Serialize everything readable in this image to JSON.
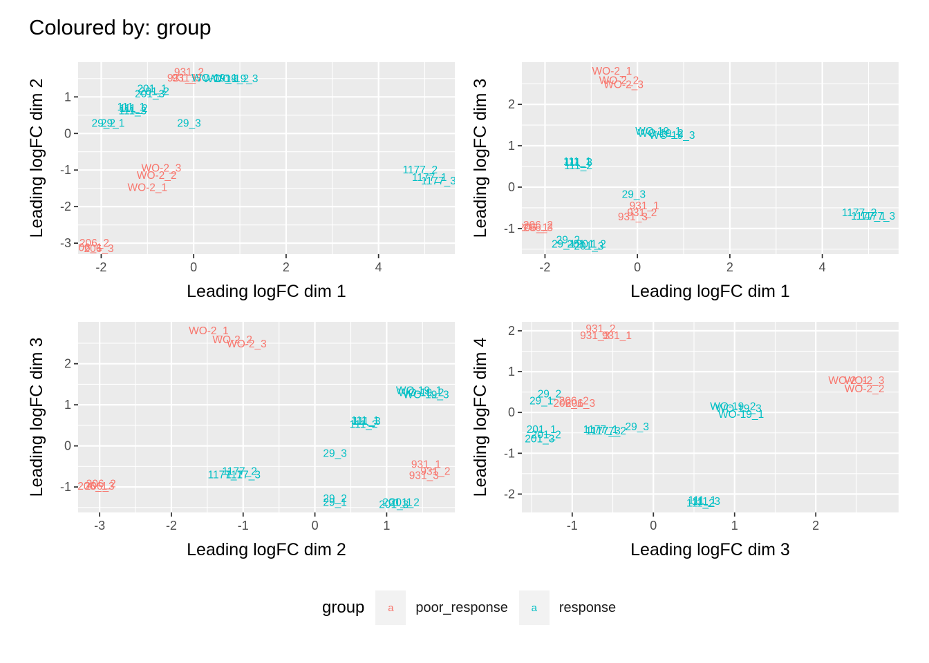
{
  "title": "Coloured by: group",
  "colors": {
    "poor_response": "#F8766D",
    "response": "#00BFC4"
  },
  "legend": {
    "title": "group",
    "key_glyph": "a",
    "items": [
      {
        "key": "poor_response",
        "label": "poor_response"
      },
      {
        "key": "response",
        "label": "response"
      }
    ]
  },
  "chart_data": [
    {
      "type": "scatter",
      "xlabel": "Leading logFC dim 1",
      "ylabel": "Leading logFC dim 2",
      "xlim": [
        -2.5,
        5.65
      ],
      "ylim": [
        -3.3,
        1.95
      ],
      "xticks": [
        -2,
        0,
        2,
        4
      ],
      "yticks": [
        -3,
        -2,
        -1,
        0,
        1
      ],
      "points": [
        {
          "label": "931_2",
          "group": "poor_response",
          "x": -0.1,
          "y": 1.68
        },
        {
          "label": "931_1",
          "group": "poor_response",
          "x": -0.25,
          "y": 1.52
        },
        {
          "label": "931_3",
          "group": "poor_response",
          "x": -0.15,
          "y": 1.52
        },
        {
          "label": "WO-19_1",
          "group": "response",
          "x": 0.45,
          "y": 1.52
        },
        {
          "label": "WO-19_2",
          "group": "response",
          "x": 0.7,
          "y": 1.5
        },
        {
          "label": "WO-19_3",
          "group": "response",
          "x": 0.9,
          "y": 1.5
        },
        {
          "label": "201_1",
          "group": "response",
          "x": -0.9,
          "y": 1.22
        },
        {
          "label": "201_2",
          "group": "response",
          "x": -0.85,
          "y": 1.15
        },
        {
          "label": "201_3",
          "group": "response",
          "x": -0.95,
          "y": 1.08
        },
        {
          "label": "111_1",
          "group": "response",
          "x": -1.35,
          "y": 0.72
        },
        {
          "label": "111_2",
          "group": "response",
          "x": -1.3,
          "y": 0.68
        },
        {
          "label": "111_3",
          "group": "response",
          "x": -1.32,
          "y": 0.62
        },
        {
          "label": "29_2",
          "group": "response",
          "x": -1.95,
          "y": 0.28
        },
        {
          "label": "29_1",
          "group": "response",
          "x": -1.75,
          "y": 0.28
        },
        {
          "label": "29_3",
          "group": "response",
          "x": -0.1,
          "y": 0.28
        },
        {
          "label": "WO-2_3",
          "group": "poor_response",
          "x": -0.7,
          "y": -0.95
        },
        {
          "label": "WO-2_2",
          "group": "poor_response",
          "x": -0.8,
          "y": -1.15
        },
        {
          "label": "WO-2_1",
          "group": "poor_response",
          "x": -1.0,
          "y": -1.48
        },
        {
          "label": "1177_2",
          "group": "response",
          "x": 4.9,
          "y": -1.0
        },
        {
          "label": "1177_1",
          "group": "response",
          "x": 5.1,
          "y": -1.2
        },
        {
          "label": "1177_3",
          "group": "response",
          "x": 5.3,
          "y": -1.3
        },
        {
          "label": "206_2",
          "group": "poor_response",
          "x": -2.15,
          "y": -3.0
        },
        {
          "label": "206_1",
          "group": "poor_response",
          "x": -2.3,
          "y": -3.12
        },
        {
          "label": "206_3",
          "group": "poor_response",
          "x": -2.05,
          "y": -3.15
        }
      ]
    },
    {
      "type": "scatter",
      "xlabel": "Leading logFC dim 1",
      "ylabel": "Leading logFC dim 3",
      "xlim": [
        -2.5,
        5.65
      ],
      "ylim": [
        -1.62,
        3.02
      ],
      "xticks": [
        -2,
        0,
        2,
        4
      ],
      "yticks": [
        -1,
        0,
        1,
        2
      ],
      "points": [
        {
          "label": "WO-2_1",
          "group": "poor_response",
          "x": -0.55,
          "y": 2.8
        },
        {
          "label": "WO-2_2",
          "group": "poor_response",
          "x": -0.4,
          "y": 2.58
        },
        {
          "label": "WO-2_3",
          "group": "poor_response",
          "x": -0.3,
          "y": 2.48
        },
        {
          "label": "WO-19_1",
          "group": "response",
          "x": 0.45,
          "y": 1.35
        },
        {
          "label": "WO-19_2",
          "group": "response",
          "x": 0.5,
          "y": 1.3
        },
        {
          "label": "WO-19_3",
          "group": "response",
          "x": 0.75,
          "y": 1.25
        },
        {
          "label": "111_1",
          "group": "response",
          "x": -1.3,
          "y": 0.62
        },
        {
          "label": "111_3",
          "group": "response",
          "x": -1.28,
          "y": 0.6
        },
        {
          "label": "111_2",
          "group": "response",
          "x": -1.28,
          "y": 0.52
        },
        {
          "label": "29_3",
          "group": "response",
          "x": -0.08,
          "y": -0.18
        },
        {
          "label": "931_1",
          "group": "poor_response",
          "x": 0.15,
          "y": -0.45
        },
        {
          "label": "931_2",
          "group": "poor_response",
          "x": 0.1,
          "y": -0.62
        },
        {
          "label": "931_3",
          "group": "poor_response",
          "x": -0.1,
          "y": -0.72
        },
        {
          "label": "1177_2",
          "group": "response",
          "x": 4.8,
          "y": -0.62
        },
        {
          "label": "1177_1",
          "group": "response",
          "x": 5.0,
          "y": -0.7
        },
        {
          "label": "1177_3",
          "group": "response",
          "x": 5.2,
          "y": -0.7
        },
        {
          "label": "206_2",
          "group": "poor_response",
          "x": -2.15,
          "y": -0.92
        },
        {
          "label": "206_1",
          "group": "poor_response",
          "x": -2.25,
          "y": -0.98
        },
        {
          "label": "206_3",
          "group": "poor_response",
          "x": -2.15,
          "y": -0.98
        },
        {
          "label": "29_2",
          "group": "response",
          "x": -1.5,
          "y": -1.28
        },
        {
          "label": "29_1",
          "group": "response",
          "x": -1.6,
          "y": -1.38
        },
        {
          "label": "201_1",
          "group": "response",
          "x": -1.2,
          "y": -1.38
        },
        {
          "label": "201_2",
          "group": "response",
          "x": -1.0,
          "y": -1.38
        },
        {
          "label": "201_3",
          "group": "response",
          "x": -1.05,
          "y": -1.43
        }
      ]
    },
    {
      "type": "scatter",
      "xlabel": "Leading logFC dim 2",
      "ylabel": "Leading logFC dim 3",
      "xlim": [
        -3.3,
        1.95
      ],
      "ylim": [
        -1.62,
        3.02
      ],
      "xticks": [
        -3,
        -2,
        -1,
        0,
        1
      ],
      "yticks": [
        -1,
        0,
        1,
        2
      ],
      "points": [
        {
          "label": "WO-2_1",
          "group": "poor_response",
          "x": -1.48,
          "y": 2.8
        },
        {
          "label": "WO-2_2",
          "group": "poor_response",
          "x": -1.15,
          "y": 2.58
        },
        {
          "label": "WO-2_3",
          "group": "poor_response",
          "x": -0.95,
          "y": 2.48
        },
        {
          "label": "WO-19_1",
          "group": "response",
          "x": 1.45,
          "y": 1.35
        },
        {
          "label": "WO-19_2",
          "group": "response",
          "x": 1.48,
          "y": 1.3
        },
        {
          "label": "WO-19_3",
          "group": "response",
          "x": 1.55,
          "y": 1.25
        },
        {
          "label": "111_1",
          "group": "response",
          "x": 0.7,
          "y": 0.62
        },
        {
          "label": "111_3",
          "group": "response",
          "x": 0.72,
          "y": 0.6
        },
        {
          "label": "111_2",
          "group": "response",
          "x": 0.68,
          "y": 0.52
        },
        {
          "label": "29_3",
          "group": "response",
          "x": 0.28,
          "y": -0.18
        },
        {
          "label": "931_1",
          "group": "poor_response",
          "x": 1.55,
          "y": -0.45
        },
        {
          "label": "931_2",
          "group": "poor_response",
          "x": 1.68,
          "y": -0.62
        },
        {
          "label": "931_3",
          "group": "poor_response",
          "x": 1.52,
          "y": -0.72
        },
        {
          "label": "1177_2",
          "group": "response",
          "x": -1.05,
          "y": -0.62
        },
        {
          "label": "1177_1",
          "group": "response",
          "x": -1.25,
          "y": -0.7
        },
        {
          "label": "1177_3",
          "group": "response",
          "x": -1.0,
          "y": -0.7
        },
        {
          "label": "206_2",
          "group": "poor_response",
          "x": -2.98,
          "y": -0.92
        },
        {
          "label": "206_1",
          "group": "poor_response",
          "x": -3.1,
          "y": -0.98
        },
        {
          "label": "206_3",
          "group": "poor_response",
          "x": -3.0,
          "y": -0.98
        },
        {
          "label": "29_2",
          "group": "response",
          "x": 0.28,
          "y": -1.28
        },
        {
          "label": "29_1",
          "group": "response",
          "x": 0.28,
          "y": -1.38
        },
        {
          "label": "201_1",
          "group": "response",
          "x": 1.15,
          "y": -1.38
        },
        {
          "label": "201_2",
          "group": "response",
          "x": 1.25,
          "y": -1.38
        },
        {
          "label": "201_3",
          "group": "response",
          "x": 1.1,
          "y": -1.43
        }
      ]
    },
    {
      "type": "scatter",
      "xlabel": "Leading logFC dim 3",
      "ylabel": "Leading logFC dim 4",
      "xlim": [
        -1.62,
        3.02
      ],
      "ylim": [
        -2.45,
        2.22
      ],
      "xticks": [
        -1,
        0,
        1,
        2
      ],
      "yticks": [
        -2,
        -1,
        0,
        1,
        2
      ],
      "points": [
        {
          "label": "931_2",
          "group": "poor_response",
          "x": -0.65,
          "y": 2.05
        },
        {
          "label": "931_3",
          "group": "poor_response",
          "x": -0.72,
          "y": 1.88
        },
        {
          "label": "931_1",
          "group": "poor_response",
          "x": -0.45,
          "y": 1.88
        },
        {
          "label": "WO-2_1",
          "group": "poor_response",
          "x": 2.4,
          "y": 0.78
        },
        {
          "label": "WO-2_3",
          "group": "poor_response",
          "x": 2.6,
          "y": 0.78
        },
        {
          "label": "WO-2_2",
          "group": "poor_response",
          "x": 2.6,
          "y": 0.58
        },
        {
          "label": "29_2",
          "group": "response",
          "x": -1.28,
          "y": 0.45
        },
        {
          "label": "29_1",
          "group": "response",
          "x": -1.38,
          "y": 0.28
        },
        {
          "label": "206_2",
          "group": "poor_response",
          "x": -0.98,
          "y": 0.28
        },
        {
          "label": "206_1",
          "group": "poor_response",
          "x": -1.05,
          "y": 0.22
        },
        {
          "label": "206_3",
          "group": "poor_response",
          "x": -0.9,
          "y": 0.22
        },
        {
          "label": "WO-19_2",
          "group": "response",
          "x": 0.98,
          "y": 0.15
        },
        {
          "label": "WO-19_3",
          "group": "response",
          "x": 1.05,
          "y": 0.1
        },
        {
          "label": "WO-19_1",
          "group": "response",
          "x": 1.08,
          "y": -0.05
        },
        {
          "label": "29_3",
          "group": "response",
          "x": -0.2,
          "y": -0.35
        },
        {
          "label": "201_1",
          "group": "response",
          "x": -1.38,
          "y": -0.42
        },
        {
          "label": "201_2",
          "group": "response",
          "x": -1.32,
          "y": -0.55
        },
        {
          "label": "201_3",
          "group": "response",
          "x": -1.4,
          "y": -0.65
        },
        {
          "label": "1177_1",
          "group": "response",
          "x": -0.65,
          "y": -0.42
        },
        {
          "label": "1177_3",
          "group": "response",
          "x": -0.62,
          "y": -0.45
        },
        {
          "label": "1177_2",
          "group": "response",
          "x": -0.55,
          "y": -0.45
        },
        {
          "label": "111_1",
          "group": "response",
          "x": 0.6,
          "y": -2.15
        },
        {
          "label": "111_3",
          "group": "response",
          "x": 0.65,
          "y": -2.18
        },
        {
          "label": "111_2",
          "group": "response",
          "x": 0.58,
          "y": -2.22
        }
      ]
    }
  ]
}
